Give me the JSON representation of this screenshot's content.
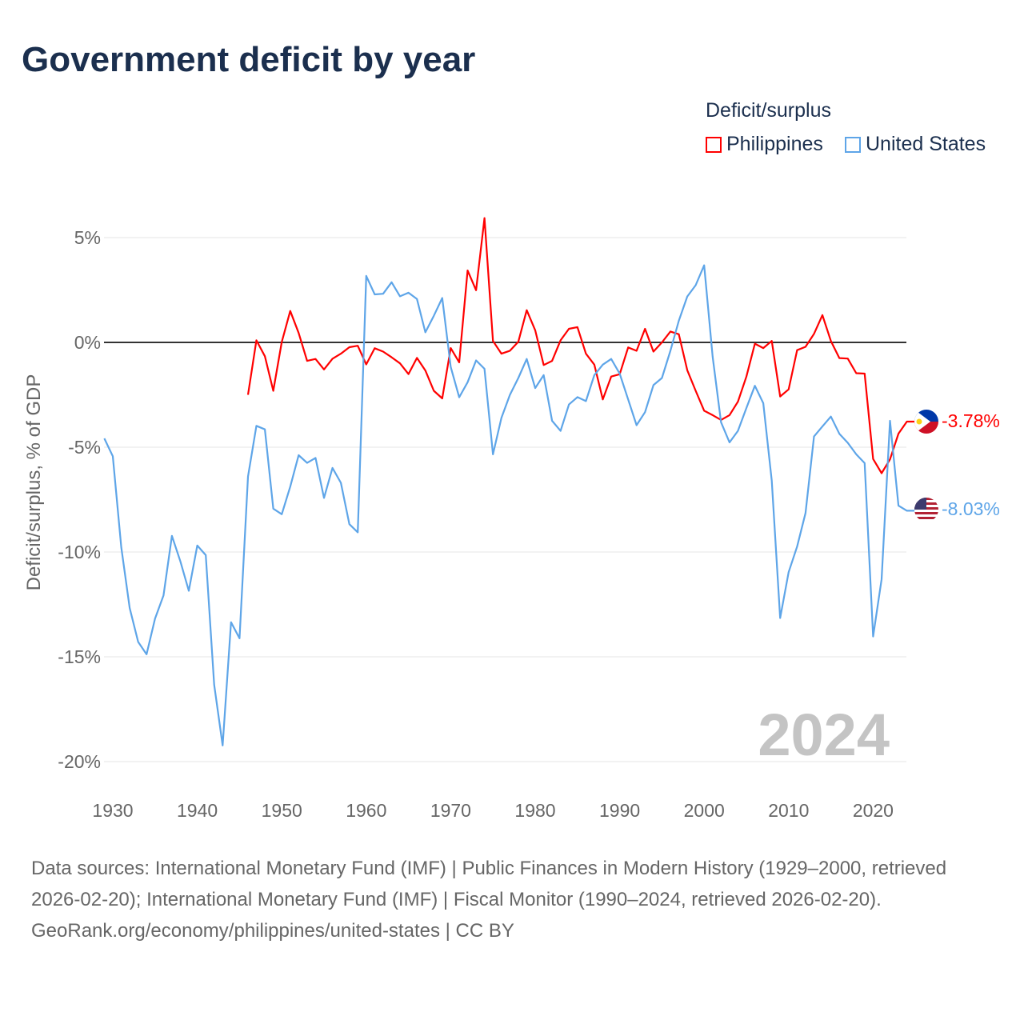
{
  "title": "Government deficit by year",
  "legend": {
    "title": "Deficit/surplus",
    "items": [
      {
        "label": "Philippines",
        "color": "#ff0000"
      },
      {
        "label": "United States",
        "color": "#5ea5e8"
      }
    ]
  },
  "year_watermark": "2024",
  "end_labels": {
    "philippines": "-3.78%",
    "united_states": "-8.03%"
  },
  "footer": {
    "sources": "Data sources: International Monetary Fund (IMF) | Public Finances in Modern History (1929–2000, retrieved 2026-02-20); International Monetary Fund (IMF) | Fiscal Monitor (1990–2024, retrieved 2026-02-20).",
    "credit": "GeoRank.org/economy/philippines/united-states | CC BY"
  },
  "chart_data": {
    "type": "line",
    "title": "Government deficit by year",
    "xlabel": "",
    "ylabel": "Deficit/surplus, % of GDP",
    "xlim": [
      1929,
      2024
    ],
    "ylim": [
      -20,
      6
    ],
    "x_ticks": [
      1930,
      1940,
      1950,
      1960,
      1970,
      1980,
      1990,
      2000,
      2010,
      2020
    ],
    "x_tick_labels": [
      "1930",
      "1940",
      "1950",
      "1960",
      "1970",
      "1980",
      "1990",
      "2000",
      "2010",
      "2020"
    ],
    "y_ticks": [
      5,
      0,
      -5,
      -10,
      -15,
      -20
    ],
    "y_tick_labels": [
      "5%",
      "0%",
      "-5%",
      "-10%",
      "-15%",
      "-20%"
    ],
    "grid": true,
    "legend_position": "top-right",
    "series": [
      {
        "name": "Philippines",
        "color": "#ff0000",
        "start_year": 1946,
        "values": [
          -2.5,
          0.1,
          -0.66,
          -2.31,
          0.02,
          1.5,
          0.45,
          -0.88,
          -0.79,
          -1.29,
          -0.78,
          -0.54,
          -0.23,
          -0.16,
          -1.05,
          -0.28,
          -0.44,
          -0.71,
          -1.0,
          -1.51,
          -0.74,
          -1.34,
          -2.31,
          -2.67,
          -0.27,
          -0.95,
          3.43,
          2.49,
          5.93,
          0.07,
          -0.54,
          -0.4,
          0.03,
          1.54,
          0.58,
          -1.08,
          -0.88,
          0.1,
          0.65,
          0.73,
          -0.54,
          -1.06,
          -2.72,
          -1.63,
          -1.52,
          -0.24,
          -0.4,
          0.65,
          -0.44,
          0.0,
          0.52,
          0.39,
          -1.33,
          -2.31,
          -3.26,
          -3.47,
          -3.7,
          -3.47,
          -2.83,
          -1.63,
          -0.06,
          -0.27,
          0.07,
          -2.58,
          -2.24,
          -0.37,
          -0.21,
          0.41,
          1.3,
          0.07,
          -0.75,
          -0.77,
          -1.47,
          -1.49,
          -5.56,
          -6.24,
          -5.58,
          -4.35,
          -3.78
        ]
      },
      {
        "name": "United States",
        "color": "#5ea5e8",
        "start_year": 1929,
        "values": [
          -4.58,
          -5.43,
          -9.78,
          -12.67,
          -14.29,
          -14.88,
          -13.18,
          -12.07,
          -9.23,
          -10.45,
          -11.85,
          -9.69,
          -10.15,
          -16.33,
          -19.23,
          -13.35,
          -14.12,
          -6.4,
          -3.98,
          -4.15,
          -7.93,
          -8.2,
          -6.88,
          -5.38,
          -5.75,
          -5.51,
          -7.42,
          -5.99,
          -6.7,
          -8.67,
          -9.06,
          3.17,
          2.29,
          2.32,
          2.87,
          2.2,
          2.37,
          2.07,
          0.48,
          1.27,
          2.12,
          -1.17,
          -2.62,
          -1.9,
          -0.86,
          -1.26,
          -5.34,
          -3.6,
          -2.51,
          -1.7,
          -0.79,
          -2.18,
          -1.56,
          -3.74,
          -4.22,
          -2.96,
          -2.61,
          -2.8,
          -1.56,
          -1.06,
          -0.79,
          -1.49,
          -2.72,
          -3.95,
          -3.33,
          -2.04,
          -1.7,
          -0.4,
          1.03,
          2.19,
          2.73,
          3.68,
          -0.68,
          -3.81,
          -4.77,
          -4.22,
          -3.13,
          -2.07,
          -2.9,
          -6.6,
          -13.15,
          -10.96,
          -9.74,
          -8.14,
          -4.49,
          -4.01,
          -3.54,
          -4.36,
          -4.79,
          -5.34,
          -5.76,
          -14.03,
          -11.3,
          -3.74,
          -7.79,
          -8.03
        ]
      }
    ]
  }
}
